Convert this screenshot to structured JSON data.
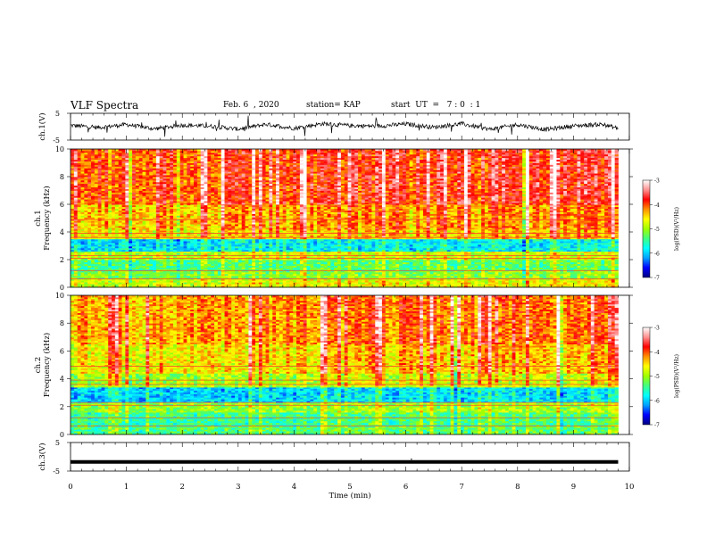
{
  "header": {
    "title": "VLF Spectra",
    "date": "Feb. 6  , 2020",
    "station": "station= KAP",
    "start": "start  UT  =   7 : 0  : 1"
  },
  "colorbar": {
    "label": "log(PSD)(V²/Hz)",
    "ticks": [
      "-3",
      "-4",
      "-5",
      "-6",
      "-7"
    ],
    "colormap": [
      "#000080",
      "#0000ff",
      "#00a0ff",
      "#00ffff",
      "#40ff80",
      "#a0ff00",
      "#ffff00",
      "#ff9000",
      "#ff0000",
      "#ff9090",
      "#ffffff"
    ]
  },
  "chart_data": [
    {
      "type": "line",
      "panel": "ch1-waveform",
      "ylabel": "ch.1(V)",
      "ylim": [
        -5,
        5
      ],
      "yticks": [
        "5",
        "-5"
      ],
      "xlim": [
        0,
        10
      ],
      "description_of_series": "noisy waveform oscillating roughly between -1.5 and +1.5 V",
      "x": [
        0,
        0.5,
        1,
        1.5,
        2,
        2.5,
        3,
        3.5,
        4,
        4.5,
        5,
        5.5,
        6,
        6.5,
        7,
        7.5,
        8,
        8.5,
        9,
        9.5,
        9.8
      ],
      "y": [
        0.5,
        -0.3,
        0.8,
        -0.8,
        0.6,
        0.2,
        -0.9,
        0.9,
        -0.6,
        1.1,
        0.4,
        0.2,
        1.0,
        -0.2,
        1.1,
        -1.0,
        0.8,
        -1.1,
        0.3,
        0.9,
        -0.6
      ]
    },
    {
      "type": "heatmap",
      "panel": "ch1-spectrogram",
      "ylabel": "ch.1\nFrequency (kHz)",
      "ylim": [
        0,
        10
      ],
      "yticks": [
        "0",
        "2",
        "4",
        "6",
        "8",
        "10"
      ],
      "xlim": [
        0,
        9.8
      ],
      "zlim": [
        -7,
        -3
      ],
      "zlabel": "log(PSD)(V²/Hz)",
      "bands": [
        {
          "f": [
            0.0,
            0.6
          ],
          "level": -4.8
        },
        {
          "f": [
            0.6,
            1.2
          ],
          "level": -5.2
        },
        {
          "f": [
            1.2,
            2.0
          ],
          "level": -5.4
        },
        {
          "f": [
            2.0,
            2.6
          ],
          "level": -4.9
        },
        {
          "f": [
            2.6,
            3.5
          ],
          "level": -5.9
        },
        {
          "f": [
            3.5,
            4.2
          ],
          "level": -4.6
        },
        {
          "f": [
            4.2,
            6.0
          ],
          "level": -4.4
        },
        {
          "f": [
            6.0,
            10.0
          ],
          "level": -4.0
        }
      ]
    },
    {
      "type": "heatmap",
      "panel": "ch2-spectrogram",
      "ylabel": "ch.2\nFrequency (kHz)",
      "ylim": [
        0,
        10
      ],
      "yticks": [
        "0",
        "2",
        "4",
        "6",
        "8",
        "10"
      ],
      "xlim": [
        0,
        9.8
      ],
      "zlim": [
        -7,
        -3
      ],
      "zlabel": "log(PSD)(V²/Hz)",
      "bands": [
        {
          "f": [
            0.0,
            0.6
          ],
          "level": -5.4
        },
        {
          "f": [
            0.6,
            1.6
          ],
          "level": -5.5
        },
        {
          "f": [
            1.6,
            2.3
          ],
          "level": -5.1
        },
        {
          "f": [
            2.3,
            3.4
          ],
          "level": -6.0
        },
        {
          "f": [
            3.4,
            4.4
          ],
          "level": -5.0
        },
        {
          "f": [
            4.4,
            6.5
          ],
          "level": -4.6
        },
        {
          "f": [
            6.5,
            10.0
          ],
          "level": -4.3
        }
      ]
    },
    {
      "type": "line",
      "panel": "ch3-waveform",
      "ylabel": "ch.3(V)",
      "ylim": [
        -5,
        5
      ],
      "yticks": [
        "5",
        "-5"
      ],
      "xlim": [
        0,
        10
      ],
      "x": [
        0,
        9.8
      ],
      "y": [
        -1.8,
        -1.8
      ]
    }
  ],
  "xaxis": {
    "label": "Time (min)",
    "ticks": [
      "0",
      "1",
      "2",
      "3",
      "4",
      "5",
      "6",
      "7",
      "8",
      "9",
      "10"
    ]
  }
}
